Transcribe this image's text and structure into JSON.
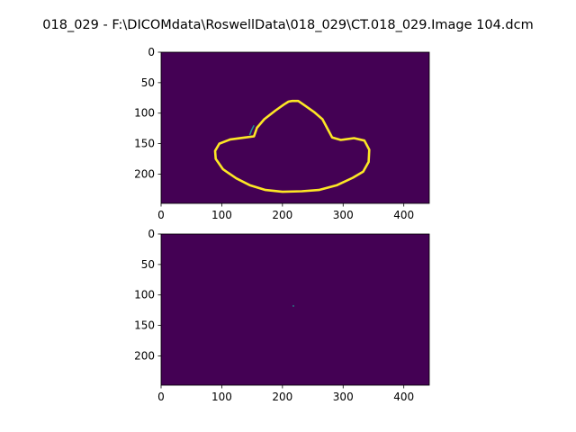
{
  "figure": {
    "title": "018_029 - F:\\DICOMdata\\RoswellData\\018_029\\CT.018_029.Image 104.dcm"
  },
  "colors": {
    "background_low": "#440154",
    "mid": "#21918c",
    "high": "#fde725",
    "axis": "#000000"
  },
  "chart_data": [
    {
      "type": "heatmap",
      "subplot": "top",
      "xlim": [
        0,
        442
      ],
      "ylim": [
        248,
        0
      ],
      "x_ticks": [
        0,
        100,
        200,
        300,
        400
      ],
      "y_ticks": [
        0,
        50,
        100,
        150,
        200
      ],
      "x_tick_labels": [
        "0",
        "100",
        "200",
        "300",
        "400"
      ],
      "y_tick_labels": [
        "0",
        "50",
        "100",
        "150",
        "200"
      ],
      "description_values": "binary mask, background 0, contour 1",
      "contour": {
        "shape": "closed outline",
        "points": [
          [
            216,
            80
          ],
          [
            226,
            80
          ],
          [
            235,
            86
          ],
          [
            252,
            98
          ],
          [
            266,
            110
          ],
          [
            275,
            127
          ],
          [
            282,
            140
          ],
          [
            296,
            144
          ],
          [
            318,
            141
          ],
          [
            335,
            145
          ],
          [
            343,
            160
          ],
          [
            342,
            180
          ],
          [
            333,
            196
          ],
          [
            316,
            206
          ],
          [
            290,
            218
          ],
          [
            260,
            226
          ],
          [
            232,
            228
          ],
          [
            200,
            229
          ],
          [
            172,
            226
          ],
          [
            146,
            218
          ],
          [
            124,
            207
          ],
          [
            102,
            192
          ],
          [
            90,
            175
          ],
          [
            89,
            162
          ],
          [
            96,
            150
          ],
          [
            114,
            143
          ],
          [
            138,
            140
          ],
          [
            153,
            138
          ],
          [
            158,
            124
          ],
          [
            170,
            110
          ],
          [
            188,
            96
          ],
          [
            202,
            86
          ],
          [
            210,
            81
          ]
        ]
      },
      "highlight": {
        "points": [
          [
            146,
            136
          ],
          [
            149,
            128
          ],
          [
            153,
            120
          ]
        ]
      }
    },
    {
      "type": "heatmap",
      "subplot": "bottom",
      "xlim": [
        0,
        442
      ],
      "ylim": [
        248,
        0
      ],
      "x_ticks": [
        0,
        100,
        200,
        300,
        400
      ],
      "y_ticks": [
        0,
        50,
        100,
        150,
        200
      ],
      "x_tick_labels": [
        "0",
        "100",
        "200",
        "300",
        "400"
      ],
      "y_tick_labels": [
        "0",
        "50",
        "100",
        "150",
        "200"
      ],
      "single_point": [
        218,
        118
      ]
    }
  ]
}
